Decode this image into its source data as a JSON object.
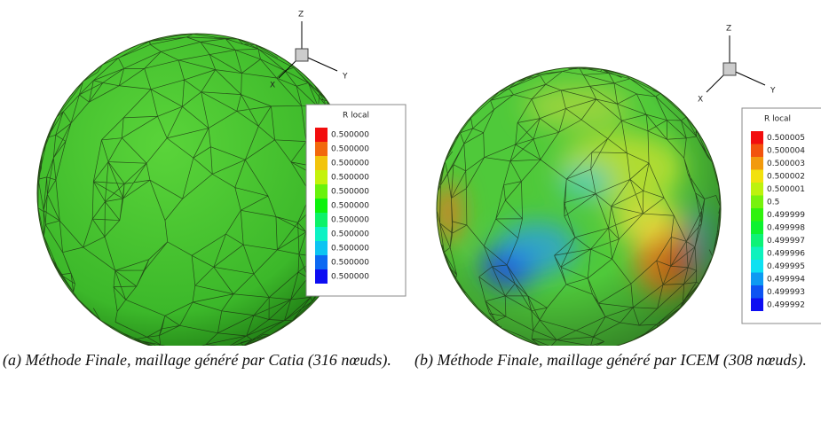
{
  "panels": [
    {
      "axes": {
        "z": "Z",
        "y": "Y",
        "x": "X"
      },
      "legend": {
        "title": "R local",
        "labels": [
          "0.500000",
          "0.500000",
          "0.500000",
          "0.500000",
          "0.500000",
          "0.500000",
          "0.500000",
          "0.500000",
          "0.500000",
          "0.500000",
          "0.500000"
        ]
      },
      "caption": "(a) Méthode Finale, maillage généré par Catia (316 nœuds)."
    },
    {
      "axes": {
        "z": "Z",
        "y": "Y",
        "x": "X"
      },
      "legend": {
        "title": "R local",
        "labels": [
          "0.500005",
          "0.500004",
          "0.500003",
          "0.500002",
          "0.500001",
          "0.5",
          "0.499999",
          "0.499998",
          "0.499997",
          "0.499996",
          "0.499995",
          "0.499994",
          "0.499993",
          "0.499992"
        ]
      },
      "caption": "(b) Méthode Finale, maillage généré par ICEM (308 nœuds)."
    }
  ]
}
